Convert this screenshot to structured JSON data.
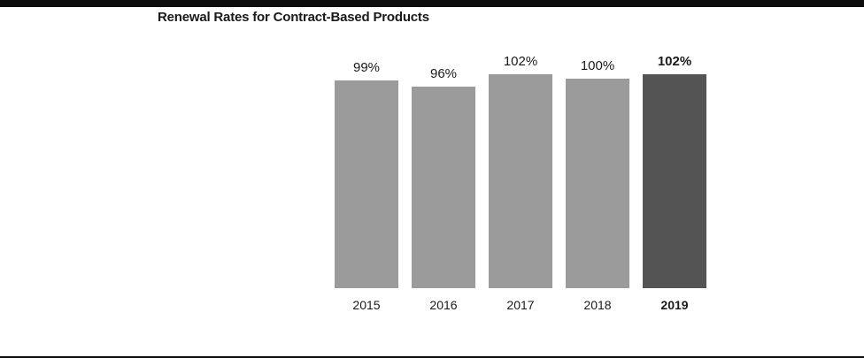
{
  "chart_data": {
    "type": "bar",
    "title": "Renewal Rates for Contract-Based Products",
    "categories": [
      "2015",
      "2016",
      "2017",
      "2018",
      "2019"
    ],
    "values": [
      99,
      96,
      102,
      100,
      102
    ],
    "value_labels": [
      "99%",
      "96%",
      "102%",
      "100%",
      "102%"
    ],
    "highlight_index": 4,
    "bar_color": "#9b9b9b",
    "highlight_color": "#545454",
    "xlabel": "",
    "ylabel": "",
    "ylim": [
      0,
      102
    ],
    "grid": false,
    "legend": "none"
  },
  "rules": {
    "color": "#0d0d0d"
  }
}
